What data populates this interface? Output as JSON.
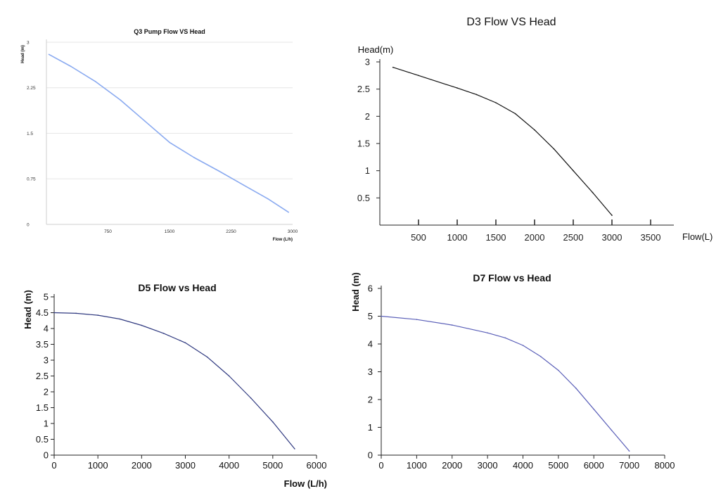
{
  "chart_data": [
    {
      "type": "line",
      "title": "Q3 Pump Flow VS Head",
      "xlabel": "Flow (L/h)",
      "ylabel": "Head (m)",
      "xlim": [
        0,
        3000
      ],
      "ylim": [
        0,
        3
      ],
      "xticks": [
        750,
        1500,
        2250,
        3000
      ],
      "yticks": [
        0,
        0.75,
        1.5,
        2.25,
        3
      ],
      "ytick_labels": [
        "0",
        "0.75",
        "1.5",
        "2.25",
        "3"
      ],
      "grid": "horizontal",
      "color": "#8aaaf0",
      "x": [
        30,
        300,
        600,
        900,
        1200,
        1500,
        1800,
        2100,
        2400,
        2700,
        2950
      ],
      "y": [
        2.8,
        2.6,
        2.35,
        2.05,
        1.7,
        1.35,
        1.1,
        0.88,
        0.65,
        0.42,
        0.2
      ]
    },
    {
      "type": "line",
      "title": "D3 Flow VS Head",
      "xlabel": "Flow(L)",
      "ylabel": "Head(m)",
      "xlim": [
        0,
        3800
      ],
      "ylim": [
        0,
        3
      ],
      "xticks": [
        500,
        1000,
        1500,
        2000,
        2500,
        3000,
        3500
      ],
      "yticks": [
        0.5,
        1,
        1.5,
        2,
        2.5,
        3
      ],
      "ytick_labels": [
        "0.5",
        "1",
        "1.5",
        "2",
        "2.5",
        "3"
      ],
      "grid": "none",
      "color": "#111111",
      "x": [
        170,
        500,
        1000,
        1250,
        1500,
        1750,
        2000,
        2250,
        2500,
        2750,
        3000
      ],
      "y": [
        2.9,
        2.75,
        2.52,
        2.4,
        2.25,
        2.05,
        1.75,
        1.4,
        1.0,
        0.6,
        0.18
      ]
    },
    {
      "type": "line",
      "title": "D5 Flow vs Head",
      "xlabel": "Flow (L/h)",
      "ylabel": "Head (m)",
      "xlim": [
        0,
        6000
      ],
      "ylim": [
        0,
        5
      ],
      "xticks": [
        0,
        1000,
        2000,
        3000,
        4000,
        5000,
        6000
      ],
      "yticks": [
        0,
        0.5,
        1,
        1.5,
        2,
        2.5,
        3,
        3.5,
        4,
        4.5,
        5
      ],
      "ytick_labels": [
        "0",
        "0.5",
        "1",
        "1.5",
        "2",
        "2.5",
        "3",
        "3.5",
        "4",
        "4.5",
        "5"
      ],
      "grid": "none",
      "color": "#303a80",
      "x": [
        0,
        500,
        1000,
        1500,
        2000,
        2500,
        3000,
        3500,
        4000,
        4500,
        5000,
        5500
      ],
      "y": [
        4.5,
        4.48,
        4.42,
        4.3,
        4.1,
        3.85,
        3.55,
        3.1,
        2.5,
        1.8,
        1.05,
        0.2
      ]
    },
    {
      "type": "line",
      "title": "D7 Flow vs Head",
      "xlabel": "",
      "ylabel": "Head (m)",
      "xlim": [
        0,
        8000
      ],
      "ylim": [
        0,
        6
      ],
      "xticks": [
        0,
        1000,
        2000,
        3000,
        4000,
        5000,
        6000,
        7000,
        8000
      ],
      "yticks": [
        0,
        1,
        2,
        3,
        4,
        5,
        6
      ],
      "ytick_labels": [
        "0",
        "1",
        "2",
        "3",
        "4",
        "5",
        "6"
      ],
      "grid": "none",
      "color": "#5a5fb8",
      "x": [
        0,
        1000,
        2000,
        3000,
        3500,
        4000,
        4500,
        5000,
        5500,
        6000,
        6500,
        7000
      ],
      "y": [
        5.0,
        4.88,
        4.68,
        4.4,
        4.22,
        3.95,
        3.55,
        3.05,
        2.4,
        1.65,
        0.9,
        0.15
      ]
    }
  ]
}
